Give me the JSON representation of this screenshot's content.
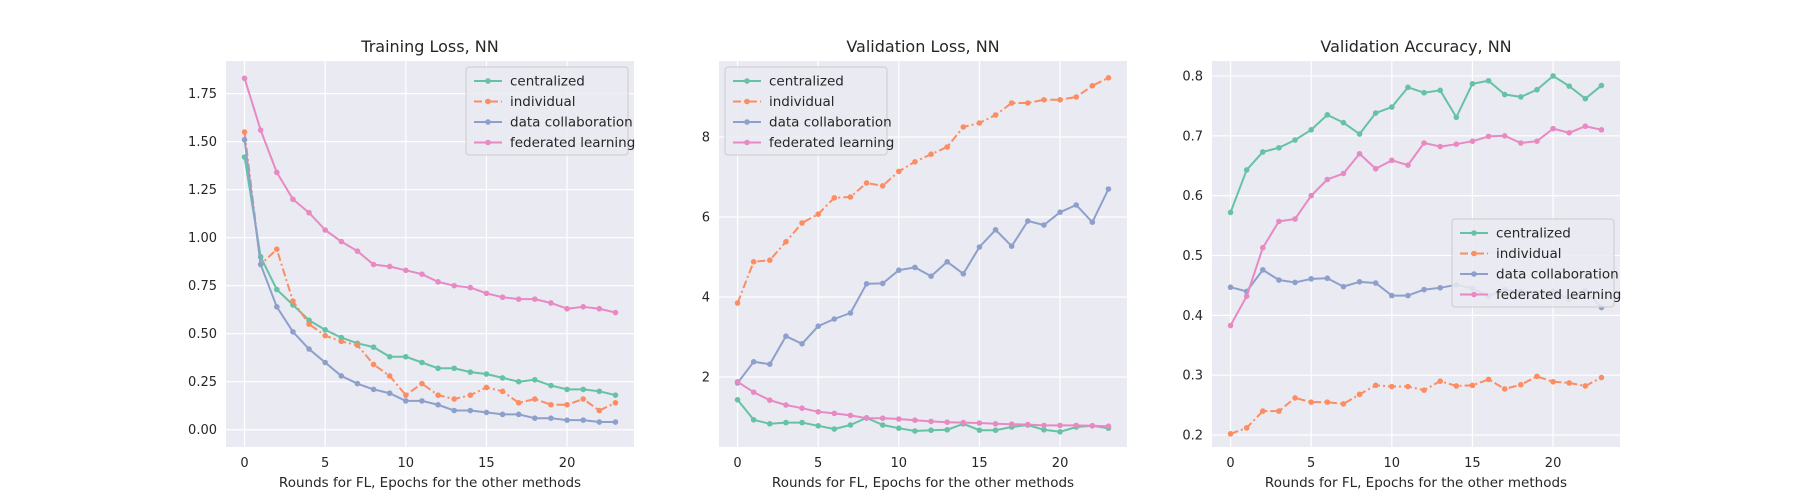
{
  "styles": {
    "background": "#eaeaf2",
    "grid": "#ffffff",
    "colors": {
      "centralized": "#66c2a5",
      "individual": "#fc8d62",
      "data collaboration": "#8da0cb",
      "federated learning": "#e78ac3"
    },
    "dashed_series": [
      "individual"
    ]
  },
  "chart_data": [
    {
      "type": "line",
      "title": "Training Loss, NN",
      "xlabel": "Rounds for FL, Epochs for the other methods",
      "ylabel": "",
      "xlim": [
        -1.15,
        24.15
      ],
      "ylim": [
        -0.09,
        1.92
      ],
      "xticks": [
        0,
        5,
        10,
        15,
        20
      ],
      "yticks": [
        0.0,
        0.25,
        0.5,
        0.75,
        1.0,
        1.25,
        1.5,
        1.75
      ],
      "ytick_labels": [
        "0.00",
        "0.25",
        "0.50",
        "0.75",
        "1.00",
        "1.25",
        "1.50",
        "1.75"
      ],
      "grid": true,
      "legend": "upper right",
      "x": [
        0,
        1,
        2,
        3,
        4,
        5,
        6,
        7,
        8,
        9,
        10,
        11,
        12,
        13,
        14,
        15,
        16,
        17,
        18,
        19,
        20,
        21,
        22,
        23
      ],
      "series": [
        {
          "name": "centralized",
          "values": [
            1.42,
            0.9,
            0.73,
            0.65,
            0.57,
            0.52,
            0.48,
            0.45,
            0.43,
            0.38,
            0.38,
            0.35,
            0.32,
            0.32,
            0.3,
            0.29,
            0.27,
            0.25,
            0.26,
            0.23,
            0.21,
            0.21,
            0.2,
            0.18
          ]
        },
        {
          "name": "individual",
          "values": [
            1.55,
            0.86,
            0.94,
            0.67,
            0.55,
            0.49,
            0.46,
            0.44,
            0.34,
            0.28,
            0.18,
            0.24,
            0.18,
            0.16,
            0.18,
            0.22,
            0.2,
            0.14,
            0.16,
            0.13,
            0.13,
            0.16,
            0.1,
            0.14
          ]
        },
        {
          "name": "data collaboration",
          "values": [
            1.51,
            0.86,
            0.64,
            0.51,
            0.42,
            0.35,
            0.28,
            0.24,
            0.21,
            0.19,
            0.15,
            0.15,
            0.13,
            0.1,
            0.1,
            0.09,
            0.08,
            0.08,
            0.06,
            0.06,
            0.05,
            0.05,
            0.04,
            0.04
          ]
        },
        {
          "name": "federated learning",
          "values": [
            1.83,
            1.56,
            1.34,
            1.2,
            1.13,
            1.04,
            0.98,
            0.93,
            0.86,
            0.85,
            0.83,
            0.81,
            0.77,
            0.75,
            0.74,
            0.71,
            0.69,
            0.68,
            0.68,
            0.66,
            0.63,
            0.64,
            0.63,
            0.61
          ]
        }
      ]
    },
    {
      "type": "line",
      "title": "Validation Loss, NN",
      "xlabel": "Rounds for FL, Epochs for the other methods",
      "ylabel": "",
      "xlim": [
        -1.15,
        24.15
      ],
      "ylim": [
        0.25,
        9.9
      ],
      "xticks": [
        0,
        5,
        10,
        15,
        20
      ],
      "yticks": [
        2,
        4,
        6,
        8
      ],
      "ytick_labels": [
        "2",
        "4",
        "6",
        "8"
      ],
      "grid": true,
      "legend": "upper left",
      "x": [
        0,
        1,
        2,
        3,
        4,
        5,
        6,
        7,
        8,
        9,
        10,
        11,
        12,
        13,
        14,
        15,
        16,
        17,
        18,
        19,
        20,
        21,
        22,
        23
      ],
      "series": [
        {
          "name": "centralized",
          "values": [
            1.43,
            0.93,
            0.83,
            0.86,
            0.86,
            0.78,
            0.7,
            0.8,
            0.98,
            0.8,
            0.72,
            0.65,
            0.67,
            0.68,
            0.83,
            0.67,
            0.67,
            0.75,
            0.8,
            0.68,
            0.63,
            0.75,
            0.78,
            0.72
          ]
        },
        {
          "name": "individual",
          "values": [
            3.85,
            4.88,
            4.92,
            5.38,
            5.85,
            6.07,
            6.48,
            6.5,
            6.85,
            6.78,
            7.14,
            7.38,
            7.57,
            7.75,
            8.25,
            8.35,
            8.55,
            8.85,
            8.85,
            8.93,
            8.93,
            9.0,
            9.28,
            9.48
          ]
        },
        {
          "name": "data collaboration",
          "values": [
            1.85,
            2.38,
            2.32,
            3.02,
            2.83,
            3.27,
            3.45,
            3.6,
            4.33,
            4.34,
            4.67,
            4.74,
            4.52,
            4.88,
            4.58,
            5.25,
            5.68,
            5.27,
            5.9,
            5.8,
            6.12,
            6.3,
            5.87,
            6.7
          ]
        },
        {
          "name": "federated learning",
          "values": [
            1.88,
            1.62,
            1.42,
            1.3,
            1.22,
            1.13,
            1.09,
            1.04,
            0.97,
            0.97,
            0.95,
            0.92,
            0.89,
            0.87,
            0.86,
            0.85,
            0.83,
            0.82,
            0.81,
            0.79,
            0.79,
            0.79,
            0.78,
            0.77
          ]
        }
      ]
    },
    {
      "type": "line",
      "title": "Validation Accuracy, NN",
      "xlabel": "Rounds for FL, Epochs for the other methods",
      "ylabel": "",
      "xlim": [
        -1.15,
        24.15
      ],
      "ylim": [
        0.18,
        0.825
      ],
      "xticks": [
        0,
        5,
        10,
        15,
        20
      ],
      "yticks": [
        0.2,
        0.3,
        0.4,
        0.5,
        0.6,
        0.7,
        0.8
      ],
      "ytick_labels": [
        "0.2",
        "0.3",
        "0.4",
        "0.5",
        "0.6",
        "0.7",
        "0.8"
      ],
      "grid": true,
      "legend": "center right",
      "x": [
        0,
        1,
        2,
        3,
        4,
        5,
        6,
        7,
        8,
        9,
        10,
        11,
        12,
        13,
        14,
        15,
        16,
        17,
        18,
        19,
        20,
        21,
        22,
        23
      ],
      "series": [
        {
          "name": "centralized",
          "values": [
            0.572,
            0.643,
            0.673,
            0.68,
            0.693,
            0.71,
            0.735,
            0.722,
            0.703,
            0.738,
            0.748,
            0.781,
            0.772,
            0.776,
            0.731,
            0.787,
            0.792,
            0.769,
            0.765,
            0.777,
            0.8,
            0.783,
            0.762,
            0.784
          ]
        },
        {
          "name": "individual",
          "values": [
            0.202,
            0.212,
            0.24,
            0.24,
            0.262,
            0.255,
            0.255,
            0.252,
            0.268,
            0.283,
            0.281,
            0.281,
            0.275,
            0.29,
            0.282,
            0.283,
            0.293,
            0.277,
            0.284,
            0.298,
            0.289,
            0.287,
            0.282,
            0.296
          ]
        },
        {
          "name": "data collaboration",
          "values": [
            0.447,
            0.44,
            0.476,
            0.459,
            0.455,
            0.461,
            0.462,
            0.448,
            0.456,
            0.454,
            0.433,
            0.433,
            0.443,
            0.446,
            0.451,
            0.445,
            0.432,
            0.443,
            0.44,
            0.437,
            0.44,
            0.427,
            0.442,
            0.413
          ]
        },
        {
          "name": "federated learning",
          "values": [
            0.383,
            0.432,
            0.513,
            0.557,
            0.561,
            0.6,
            0.627,
            0.637,
            0.67,
            0.645,
            0.659,
            0.651,
            0.688,
            0.682,
            0.686,
            0.691,
            0.699,
            0.7,
            0.688,
            0.691,
            0.712,
            0.705,
            0.716,
            0.71
          ]
        }
      ]
    }
  ]
}
